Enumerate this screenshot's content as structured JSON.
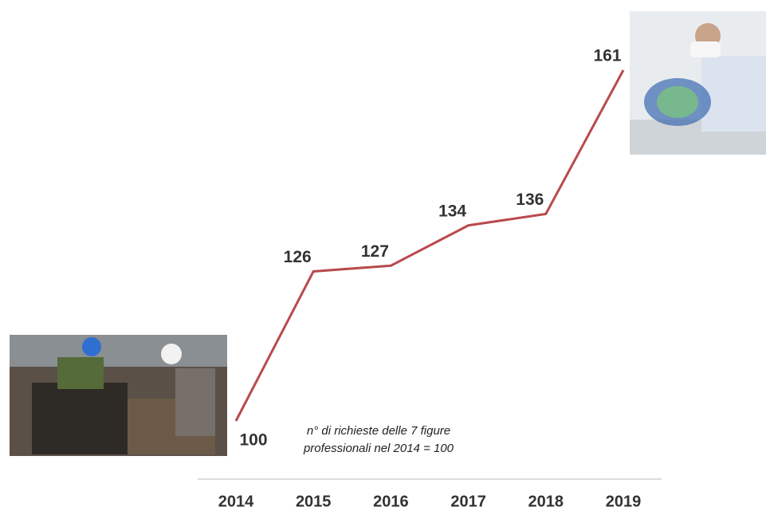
{
  "chart_data": {
    "type": "line",
    "categories": [
      "2014",
      "2015",
      "2016",
      "2017",
      "2018",
      "2019"
    ],
    "series": [
      {
        "color": "#b94a4d",
        "values": [
          100,
          126,
          127,
          134,
          136,
          161
        ]
      }
    ],
    "annotation": [
      "n° di richieste delle 7 figure",
      "professionali nel 2014 = 100"
    ]
  }
}
